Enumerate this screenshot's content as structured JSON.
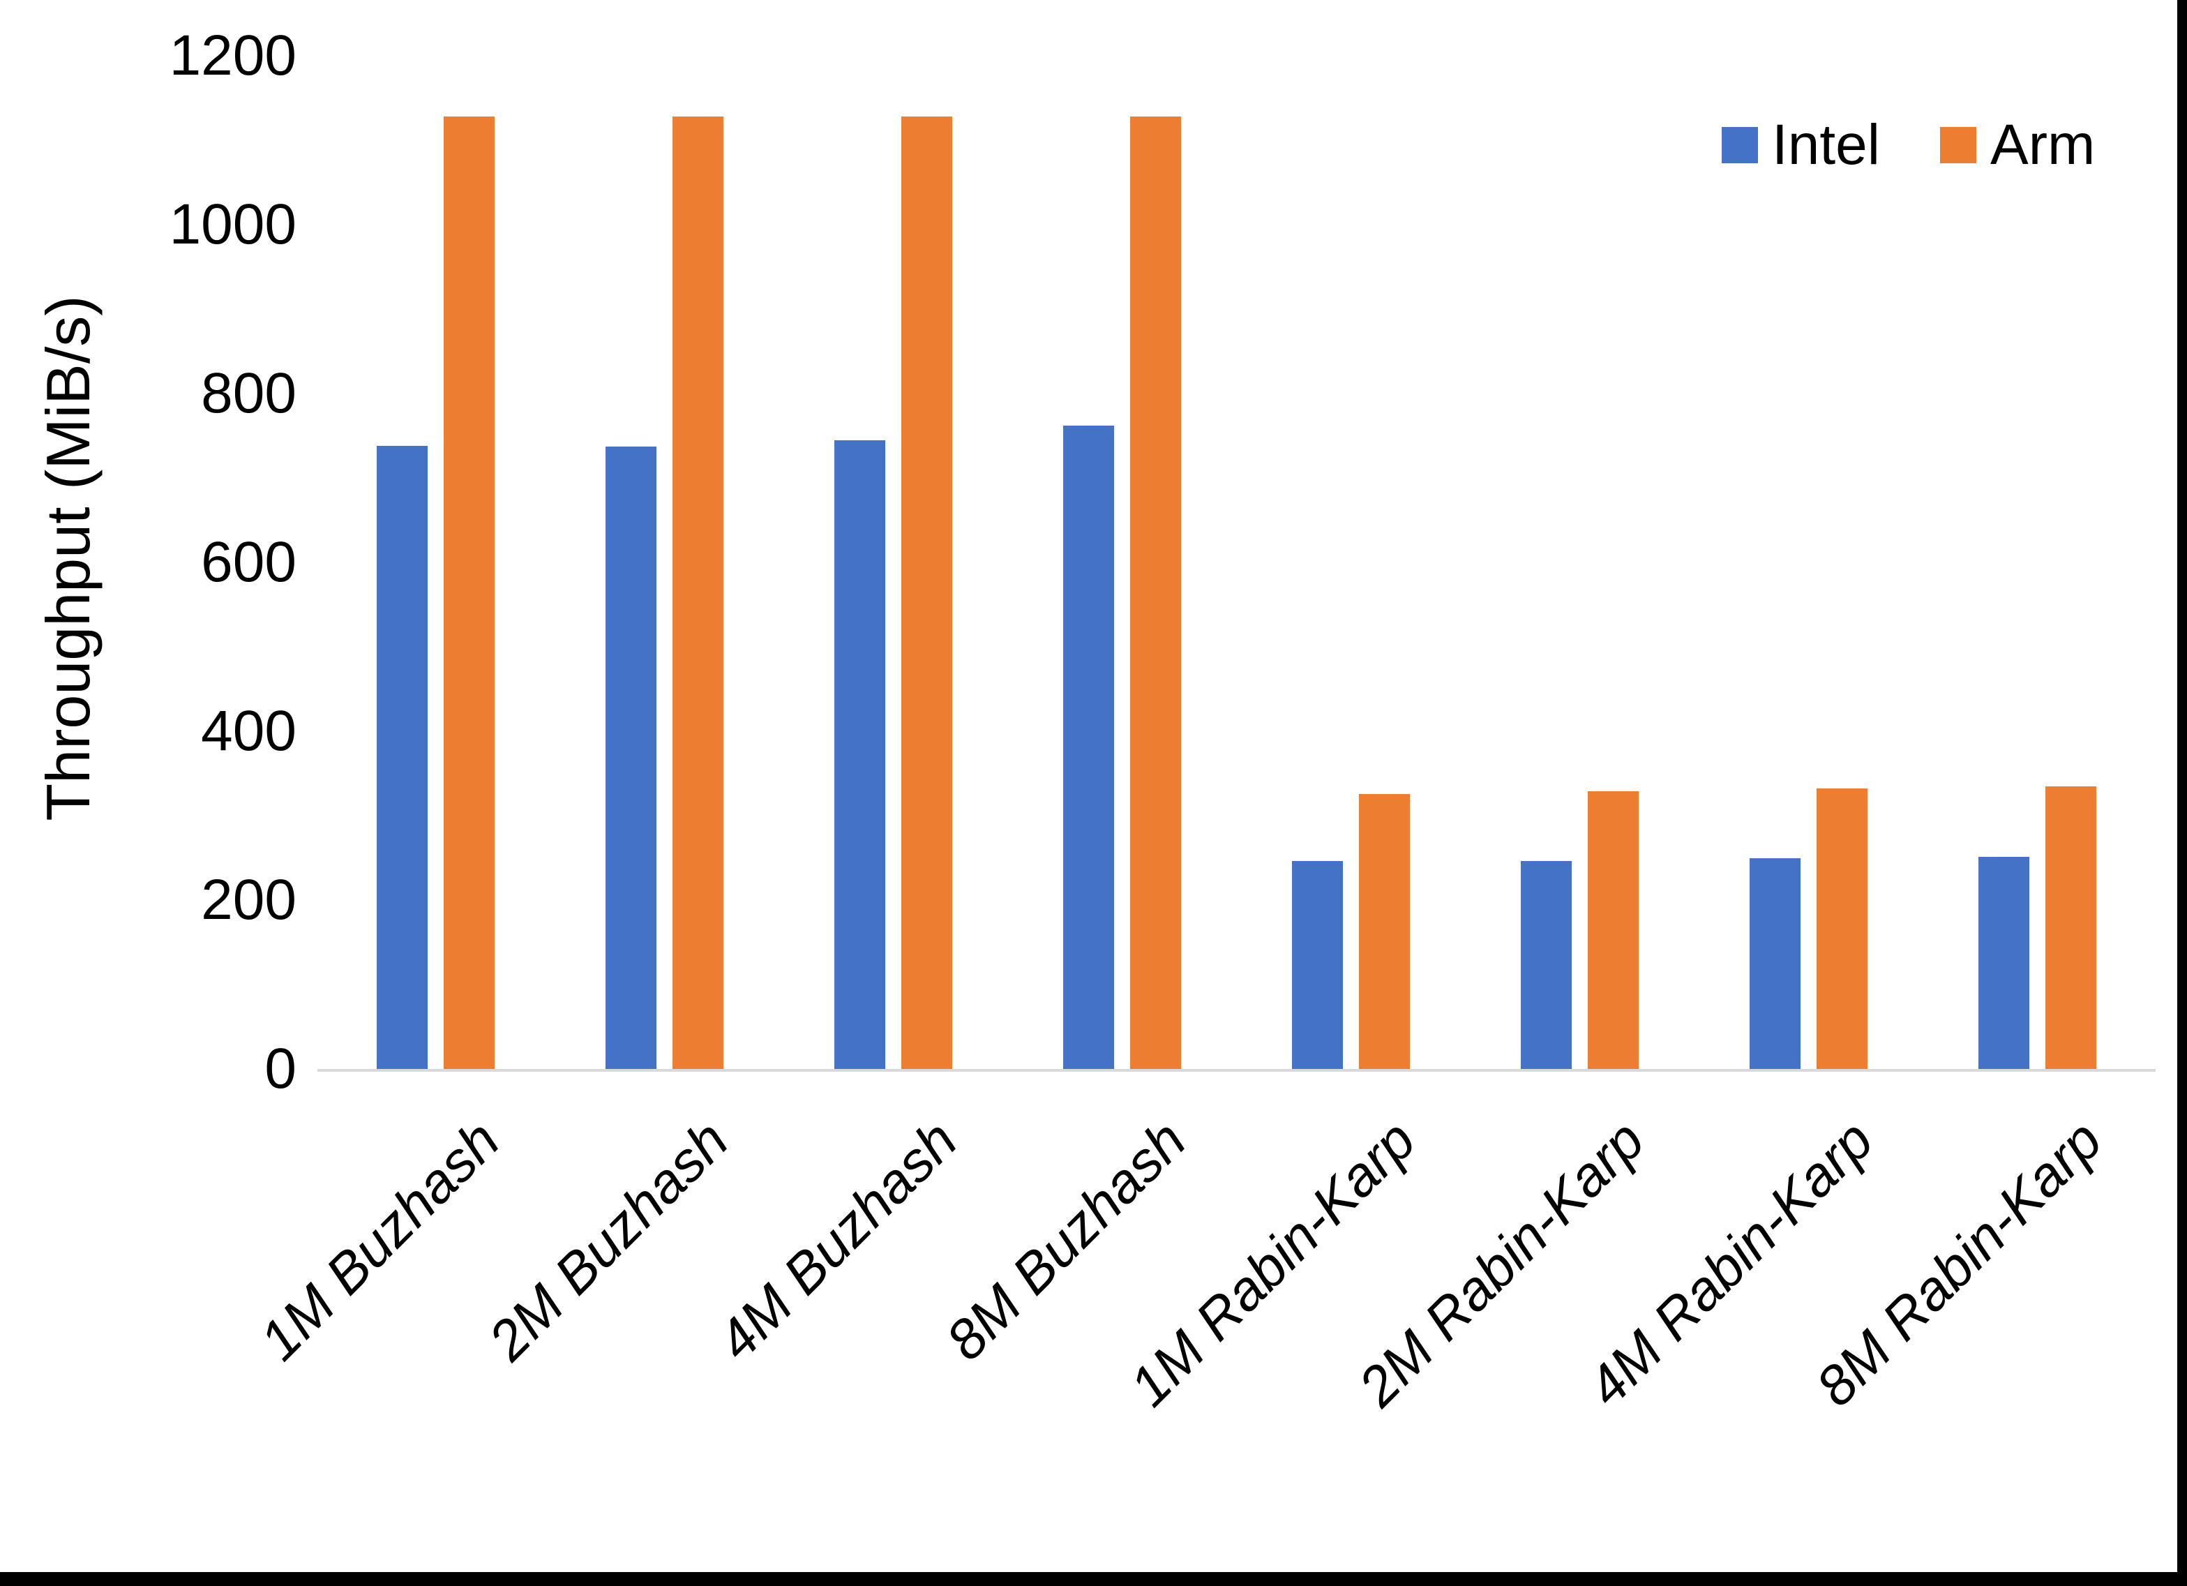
{
  "chart_data": {
    "type": "bar",
    "title": "",
    "xlabel": "",
    "ylabel": "Throughput (MiB/s)",
    "categories": [
      "1M Buzhash",
      "2M Buzhash",
      "4M Buzhash",
      "8M Buzhash",
      "1M Rabin-Karp",
      "2M Rabin-Karp",
      "4M Rabin-Karp",
      "8M Rabin-Karp"
    ],
    "series": [
      {
        "name": "Intel",
        "color": "#4472C4",
        "values": [
          738,
          737,
          745,
          762,
          246,
          246,
          250,
          251
        ]
      },
      {
        "name": "Arm",
        "color": "#ED7D31",
        "values": [
          1128,
          1128,
          1128,
          1128,
          326,
          329,
          332,
          335
        ]
      }
    ],
    "ylim": [
      0,
      1200
    ],
    "yticks": [
      0,
      200,
      400,
      600,
      800,
      1000,
      1200
    ],
    "grid": false,
    "legend_position": "top-right",
    "axis_line_color": "#D9D9D9",
    "x_tick_rotation_deg": 45,
    "x_tick_style": "italic"
  },
  "legend": {
    "items": [
      {
        "label": "Intel",
        "color": "#4472C4"
      },
      {
        "label": "Arm",
        "color": "#ED7D31"
      }
    ]
  },
  "colors": {
    "background": "#FFFFFF",
    "frame": "#000000",
    "text": "#000000",
    "axis_line": "#D9D9D9"
  }
}
